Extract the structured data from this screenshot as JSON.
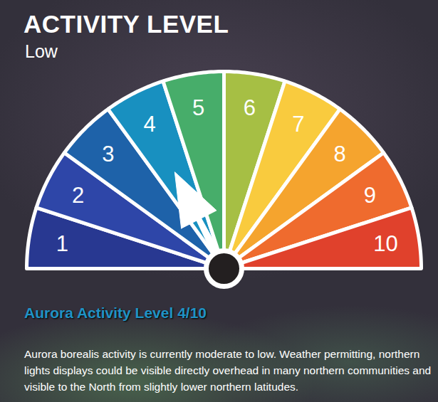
{
  "chart_data": {
    "type": "gauge",
    "title": "ACTIVITY LEVEL",
    "subtitle": "Low",
    "categories": [
      1,
      2,
      3,
      4,
      5,
      6,
      7,
      8,
      9,
      10
    ],
    "colors": [
      "#283891",
      "#2e46a8",
      "#1e62a9",
      "#1890c0",
      "#47ad6a",
      "#a6bf44",
      "#f9cb3e",
      "#f5a42e",
      "#ef6b2e",
      "#e0412c"
    ],
    "value": 4,
    "caption_title": "Aurora Activity Level 4/10",
    "caption": "Aurora borealis activity is currently moderate to low. Weather permitting, northern lights displays could be visible directly overhead in many northern communities and visible to the North from slightly lower northern latitudes."
  }
}
